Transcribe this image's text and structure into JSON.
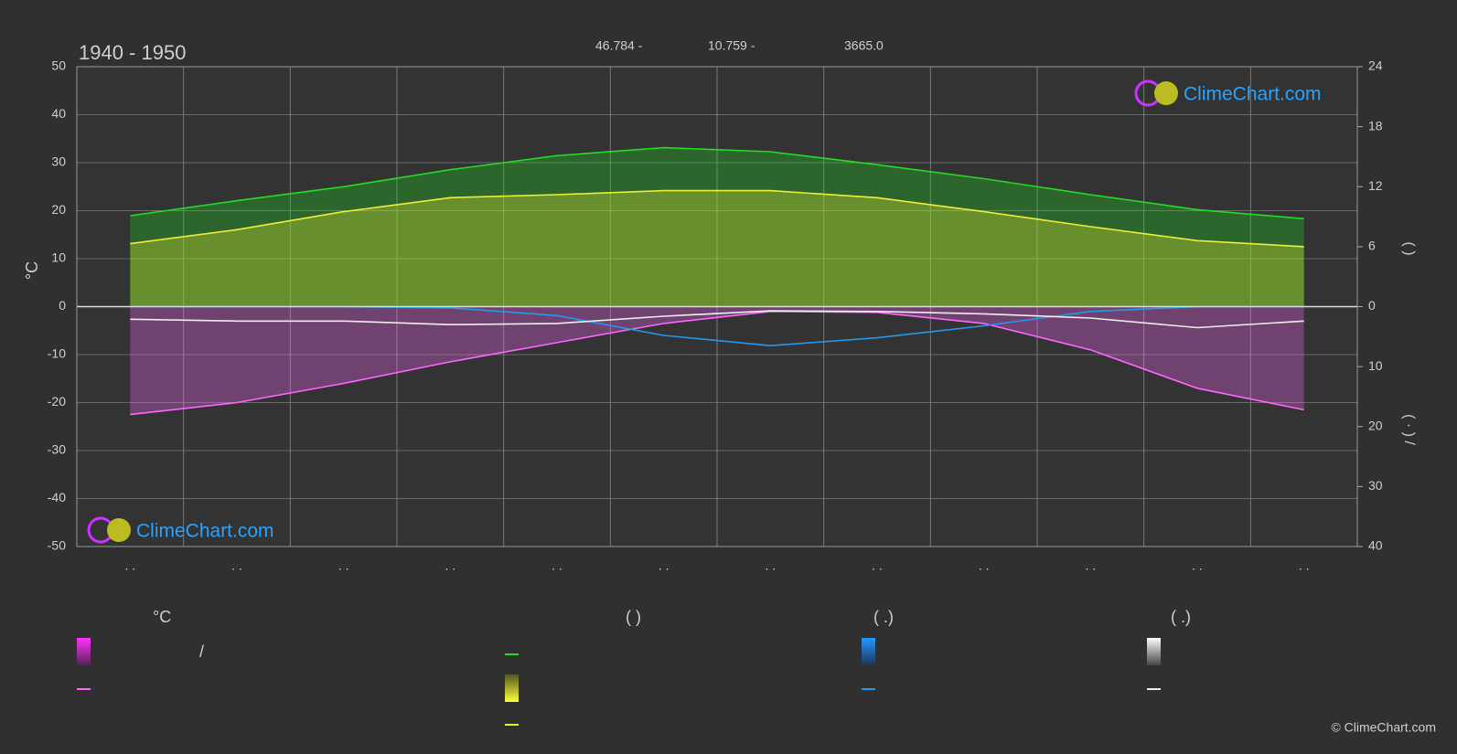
{
  "chart_data": {
    "type": "line",
    "title": "1940 - 1950",
    "coordinates": [
      "46.784 -",
      "10.759 -",
      "3665.0"
    ],
    "ylabel": "°C",
    "y2label": "(   )",
    "y3label": "( · )  /",
    "categories": [
      ". .",
      ". .",
      ". .",
      ". .",
      ". .",
      ". .",
      ". .",
      ". .",
      ". .",
      ". .",
      ". .",
      ". ."
    ],
    "ylim": [
      -50,
      50
    ],
    "yticks": [
      -50,
      -40,
      -30,
      -20,
      -10,
      0,
      10,
      20,
      30,
      40,
      50
    ],
    "y2lim": [
      0,
      24
    ],
    "y2ticks": [
      0,
      6,
      12,
      18,
      24
    ],
    "y3lim": [
      0,
      40
    ],
    "y3ticks": [
      10,
      20,
      30,
      40
    ],
    "grid": true,
    "series": [
      {
        "color": "#22dd22",
        "axis": "y2",
        "area": true,
        "values": [
          9.1,
          10.6,
          12.0,
          13.7,
          15.1,
          15.9,
          15.5,
          14.2,
          12.8,
          11.2,
          9.7,
          8.8
        ]
      },
      {
        "color": "#eeee33",
        "axis": "y2",
        "area": true,
        "values": [
          6.3,
          7.7,
          9.5,
          10.9,
          11.2,
          11.6,
          11.6,
          10.9,
          9.5,
          8.0,
          6.6,
          6.0
        ]
      },
      {
        "color": "#ff66ff",
        "axis": "y",
        "area": true,
        "values": [
          -22.5,
          -20,
          -16,
          -11.5,
          -7.5,
          -3.5,
          -1,
          -1.2,
          -3.5,
          -9,
          -17,
          -21.5
        ]
      },
      {
        "color": "#2299ee",
        "axis": "y3",
        "area": false,
        "values": [
          0,
          0,
          0,
          0.2,
          1.5,
          4.8,
          6.5,
          5.2,
          3.2,
          0.8,
          0,
          0
        ]
      },
      {
        "color": "#eeeeee",
        "axis": "y3",
        "area": false,
        "values": [
          2.1,
          2.4,
          2.4,
          3.0,
          2.8,
          1.6,
          0.7,
          0.8,
          1.2,
          1.9,
          3.5,
          2.4
        ]
      }
    ]
  },
  "legend": {
    "temp_header": "°C",
    "slash": "/",
    "daylight_header": "(          )",
    "rain_header": "(   .)",
    "snow_header": "(   .)"
  },
  "logo": "ClimeChart.com",
  "copyright": "© ClimeChart.com"
}
